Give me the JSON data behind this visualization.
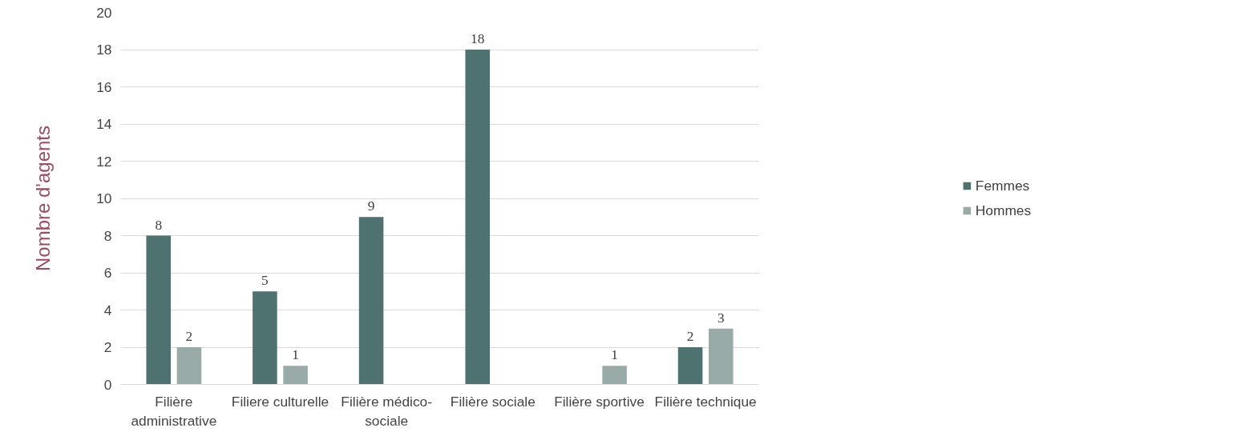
{
  "chart_data": {
    "type": "bar",
    "ylabel": "Nombre d'agents",
    "categories": [
      "Filière administrative",
      "Filiere culturelle",
      "Filière médico-sociale",
      "Filière sociale",
      "Filière sportive",
      "Filière technique"
    ],
    "series": [
      {
        "name": "Femmes",
        "color": "#4e7270",
        "values": [
          8,
          5,
          9,
          18,
          null,
          2
        ]
      },
      {
        "name": "Hommes",
        "color": "#98aba8",
        "values": [
          2,
          1,
          null,
          null,
          1,
          3
        ]
      }
    ],
    "ylim": [
      0,
      20
    ],
    "yticks": [
      0,
      2,
      4,
      6,
      8,
      10,
      12,
      14,
      16,
      18,
      20
    ],
    "grid": "y",
    "legend": "right",
    "data_labels": true
  }
}
